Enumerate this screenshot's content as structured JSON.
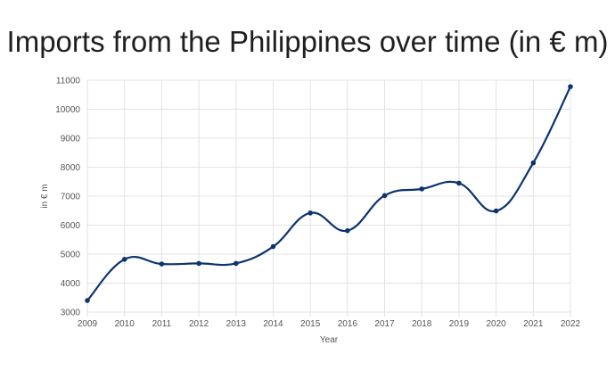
{
  "chart_data": {
    "type": "line",
    "title": "Imports from the Philippines over time (in € m)",
    "xlabel": "Year",
    "ylabel": "in € m",
    "x": [
      2009,
      2010,
      2011,
      2012,
      2013,
      2014,
      2015,
      2016,
      2017,
      2018,
      2019,
      2020,
      2021,
      2022
    ],
    "series": [
      {
        "values": [
          3400,
          4820,
          4660,
          4680,
          4680,
          5260,
          6420,
          5810,
          7020,
          7250,
          7450,
          6490,
          8150,
          10780
        ],
        "color": "#0d3370"
      }
    ],
    "yticks": [
      3000,
      4000,
      5000,
      6000,
      7000,
      8000,
      9000,
      10000,
      11000
    ],
    "ylim": [
      3000,
      11000
    ],
    "grid": true,
    "legend": "none"
  }
}
